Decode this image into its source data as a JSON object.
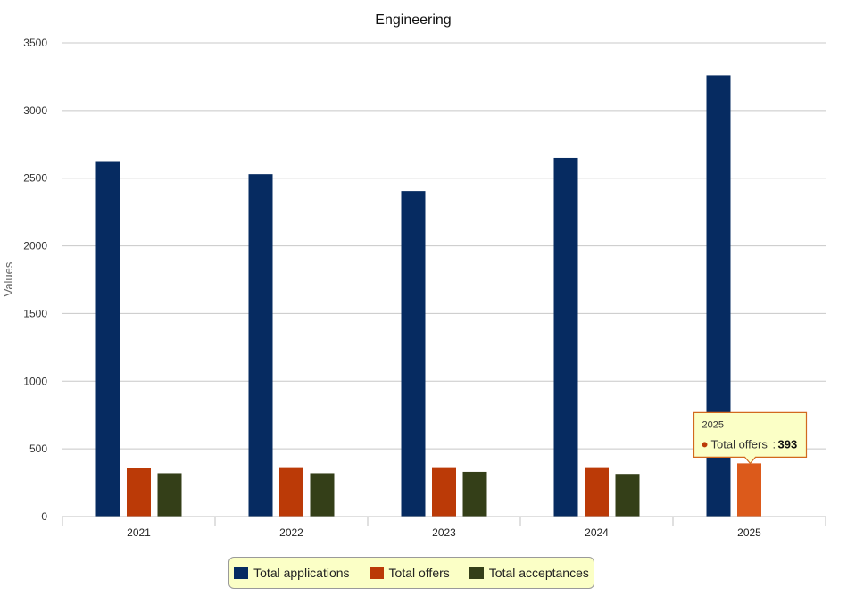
{
  "chart_data": {
    "type": "bar",
    "title": "Engineering",
    "ylabel": "Values",
    "xlabel": "",
    "ylim": [
      0,
      3500
    ],
    "yticks": [
      0,
      500,
      1000,
      1500,
      2000,
      2500,
      3000,
      3500
    ],
    "categories": [
      "2021",
      "2022",
      "2023",
      "2024",
      "2025"
    ],
    "series": [
      {
        "name": "Total applications",
        "color": "#062b61",
        "values": [
          2620,
          2530,
          2405,
          2650,
          3260
        ]
      },
      {
        "name": "Total offers",
        "color": "#bb3a07",
        "values": [
          360,
          365,
          365,
          365,
          393
        ]
      },
      {
        "name": "Total acceptances",
        "color": "#343f18",
        "values": [
          320,
          320,
          330,
          315,
          null
        ]
      }
    ],
    "grid": true,
    "legend_position": "bottom-center",
    "tooltip": {
      "category": "2025",
      "series": "Total offers",
      "value": "393",
      "highlight_color": "#dc5a1b"
    }
  }
}
